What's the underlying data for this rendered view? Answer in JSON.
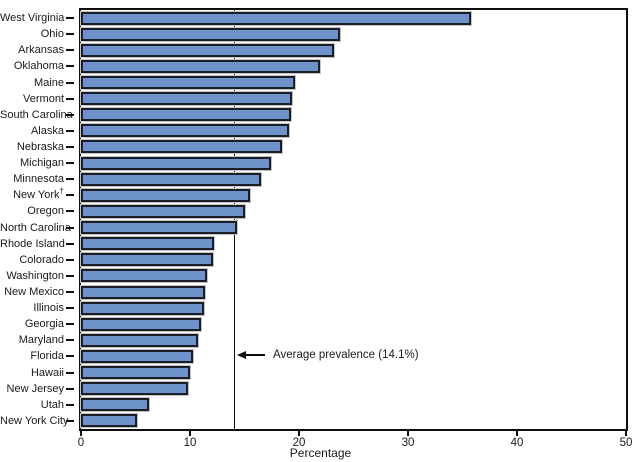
{
  "chart_data": {
    "type": "bar",
    "orientation": "horizontal",
    "categories": [
      "West Virginia",
      "Ohio",
      "Arkansas",
      "Oklahoma",
      "Maine",
      "Vermont",
      "South Carolina",
      "Alaska",
      "Nebraska",
      "Michigan",
      "Minnesota",
      "New York†",
      "Oregon",
      "North Carolina",
      "Rhode Island",
      "Colorado",
      "Washington",
      "New Mexico",
      "Illinois",
      "Georgia",
      "Maryland",
      "Florida",
      "Hawaii",
      "New Jersey",
      "Utah",
      "New York City"
    ],
    "values": [
      35.8,
      23.8,
      23.2,
      21.9,
      19.6,
      19.4,
      19.3,
      19.1,
      18.4,
      17.4,
      16.5,
      15.5,
      15.0,
      14.3,
      12.2,
      12.1,
      11.6,
      11.4,
      11.3,
      11.0,
      10.7,
      10.3,
      10.0,
      9.8,
      6.2,
      5.1
    ],
    "title": "",
    "xlabel": "Percentage",
    "ylabel": "",
    "xlim": [
      0,
      50
    ],
    "x_ticks": [
      0,
      10,
      20,
      30,
      40,
      50
    ],
    "grid": false,
    "average_line": {
      "value": 14.1,
      "label": "Average prevalence (14.1%)"
    },
    "colors": {
      "bar_fill": "#6e93cb",
      "bar_border": "#1b1e27",
      "axis": "#0f0f0f",
      "background": "#ffffff"
    }
  }
}
